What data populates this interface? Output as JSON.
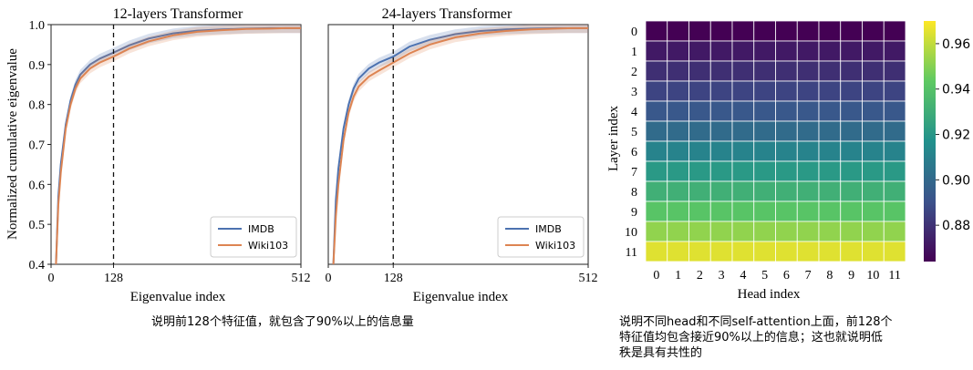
{
  "chart_data": [
    {
      "type": "line",
      "title": "12-layers Transformer",
      "xlabel": "Eigenvalue index",
      "ylabel": "Normalized cumulative eigenvalue",
      "xlim": [
        0,
        512
      ],
      "ylim": [
        0.4,
        1.0
      ],
      "xticks": [
        "0",
        "128",
        "512"
      ],
      "yticks": [
        "0.4",
        "0.5",
        "0.6",
        "0.7",
        "0.8",
        "0.9",
        "1.0"
      ],
      "vline_x": 128,
      "legend_position": "lower-right",
      "x": [
        10,
        15,
        20,
        30,
        40,
        50,
        60,
        80,
        100,
        128,
        160,
        200,
        250,
        300,
        350,
        400,
        450,
        480,
        512
      ],
      "series": [
        {
          "name": "IMDB",
          "color": "#4c72b0",
          "values": [
            0.4,
            0.57,
            0.65,
            0.75,
            0.81,
            0.85,
            0.875,
            0.9,
            0.915,
            0.93,
            0.948,
            0.965,
            0.978,
            0.985,
            0.988,
            0.99,
            0.991,
            0.991,
            0.991
          ]
        },
        {
          "name": "Wiki103",
          "color": "#dd8452",
          "values": [
            0.4,
            0.55,
            0.63,
            0.74,
            0.8,
            0.84,
            0.865,
            0.89,
            0.905,
            0.92,
            0.94,
            0.958,
            0.973,
            0.982,
            0.986,
            0.989,
            0.99,
            0.991,
            0.991
          ]
        }
      ]
    },
    {
      "type": "line",
      "title": "24-layers Transformer",
      "xlabel": "Eigenvalue index",
      "ylabel": "",
      "xlim": [
        0,
        512
      ],
      "ylim": [
        0.4,
        1.0
      ],
      "xticks": [
        "0",
        "128",
        "512"
      ],
      "vline_x": 128,
      "legend_position": "lower-right",
      "x": [
        10,
        15,
        20,
        30,
        40,
        50,
        60,
        80,
        100,
        128,
        160,
        200,
        250,
        300,
        350,
        400,
        450,
        480,
        512
      ],
      "series": [
        {
          "name": "IMDB",
          "color": "#4c72b0",
          "values": [
            0.4,
            0.56,
            0.64,
            0.74,
            0.8,
            0.84,
            0.865,
            0.89,
            0.905,
            0.92,
            0.945,
            0.962,
            0.976,
            0.984,
            0.988,
            0.99,
            0.991,
            0.991,
            0.991
          ]
        },
        {
          "name": "Wiki103",
          "color": "#dd8452",
          "values": [
            0.4,
            0.52,
            0.6,
            0.71,
            0.78,
            0.82,
            0.845,
            0.87,
            0.885,
            0.905,
            0.928,
            0.95,
            0.968,
            0.978,
            0.984,
            0.988,
            0.99,
            0.991,
            0.991
          ]
        }
      ]
    },
    {
      "type": "heatmap",
      "xlabel": "Head index",
      "ylabel": "Layer index",
      "x_categories": [
        "0",
        "1",
        "2",
        "3",
        "4",
        "5",
        "6",
        "7",
        "8",
        "9",
        "10",
        "11"
      ],
      "y_categories": [
        "0",
        "1",
        "2",
        "3",
        "4",
        "5",
        "6",
        "7",
        "8",
        "9",
        "10",
        "11"
      ],
      "row_values": [
        0.864,
        0.872,
        0.879,
        0.886,
        0.893,
        0.901,
        0.911,
        0.921,
        0.931,
        0.941,
        0.952,
        0.965
      ],
      "colorbar_range": [
        0.864,
        0.97
      ],
      "colorbar_ticks": [
        "0.88",
        "0.90",
        "0.92",
        "0.94",
        "0.96"
      ],
      "colormap": "viridis"
    }
  ],
  "captions": {
    "left": "说明前128个特征值，就包含了90%以上的信息量",
    "right": [
      "说明不同head和不同self-attention上面，前128个",
      "特征值均包含接近90%以上的信息；这也就说明低",
      "秩是具有共性的"
    ]
  }
}
